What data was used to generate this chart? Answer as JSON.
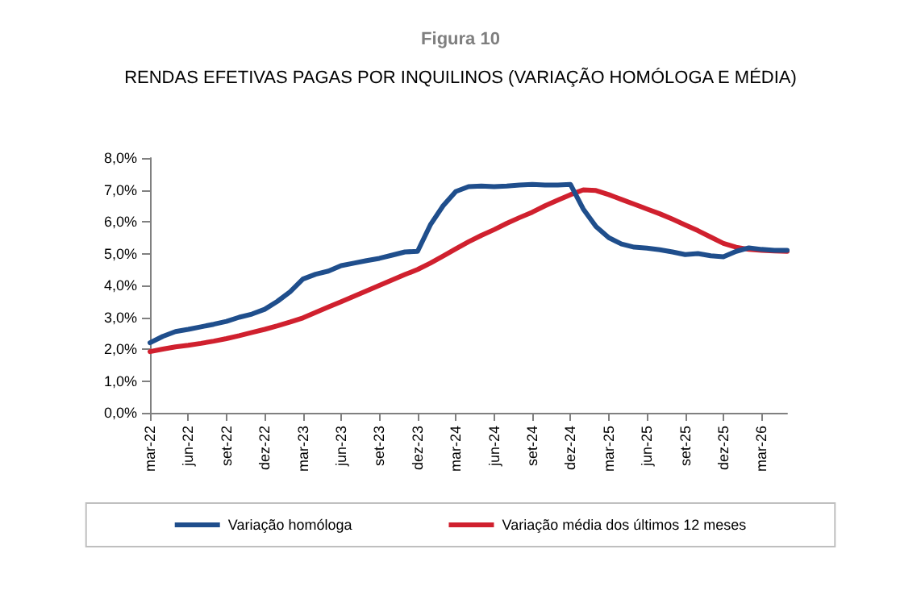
{
  "chart_data": {
    "type": "line",
    "title": "Figura 10",
    "subtitle": "RENDAS EFETIVAS PAGAS POR INQUILINOS (VARIAÇÃO HOMÓLOGA E MÉDIA)",
    "categories": [
      "mar-22",
      null,
      null,
      "jun-22",
      null,
      null,
      "set-22",
      null,
      null,
      "dez-22",
      null,
      null,
      "mar-23",
      null,
      null,
      "jun-23",
      null,
      null,
      "set-23",
      null,
      null,
      "dez-23",
      null,
      null,
      "mar-24",
      null,
      null,
      "jun-24",
      null,
      null,
      "set-24",
      null,
      null,
      "dez-24",
      null,
      null,
      "mar-25",
      null,
      null,
      "jun-25",
      null,
      null,
      "set-25",
      null,
      null,
      "dez-25",
      null,
      null,
      "mar-26",
      null,
      null
    ],
    "series": [
      {
        "name": "Variação homóloga",
        "color": "#1f4e8c",
        "values": [
          2.2,
          2.4,
          2.55,
          2.62,
          2.7,
          2.78,
          2.87,
          3.0,
          3.1,
          3.25,
          3.5,
          3.8,
          4.2,
          4.35,
          4.45,
          4.62,
          4.7,
          4.78,
          4.85,
          4.95,
          5.05,
          5.07,
          5.9,
          6.5,
          6.95,
          7.1,
          7.12,
          7.1,
          7.12,
          7.15,
          7.17,
          7.15,
          7.15,
          7.17,
          6.4,
          5.85,
          5.5,
          5.3,
          5.2,
          5.17,
          5.12,
          5.05,
          4.97,
          5.0,
          4.93,
          4.9,
          5.07,
          5.18,
          5.13,
          5.1,
          5.1
        ]
      },
      {
        "name": "Variação média dos últimos 12 meses",
        "color": "#d0202e",
        "values": [
          1.92,
          2.0,
          2.07,
          2.12,
          2.18,
          2.25,
          2.33,
          2.42,
          2.52,
          2.62,
          2.73,
          2.85,
          2.98,
          3.15,
          3.32,
          3.49,
          3.66,
          3.83,
          4.0,
          4.17,
          4.34,
          4.5,
          4.7,
          4.92,
          5.15,
          5.37,
          5.57,
          5.75,
          5.95,
          6.13,
          6.3,
          6.5,
          6.68,
          6.85,
          7.0,
          6.98,
          6.85,
          6.7,
          6.55,
          6.4,
          6.25,
          6.08,
          5.9,
          5.72,
          5.52,
          5.32,
          5.2,
          5.13,
          5.1,
          5.08,
          5.07
        ]
      }
    ],
    "ylim": [
      0,
      8
    ],
    "yticks": [
      {
        "value": 0,
        "label": "0,0%"
      },
      {
        "value": 1,
        "label": "1,0%"
      },
      {
        "value": 2,
        "label": "2,0%"
      },
      {
        "value": 3,
        "label": "3,0%"
      },
      {
        "value": 4,
        "label": "4,0%"
      },
      {
        "value": 5,
        "label": "5,0%"
      },
      {
        "value": 6,
        "label": "6,0%"
      },
      {
        "value": 7,
        "label": "7,0%"
      },
      {
        "value": 8,
        "label": "8,0%"
      }
    ],
    "grid": false,
    "legend": "bottom",
    "marker": "none",
    "line_style": "solid"
  }
}
